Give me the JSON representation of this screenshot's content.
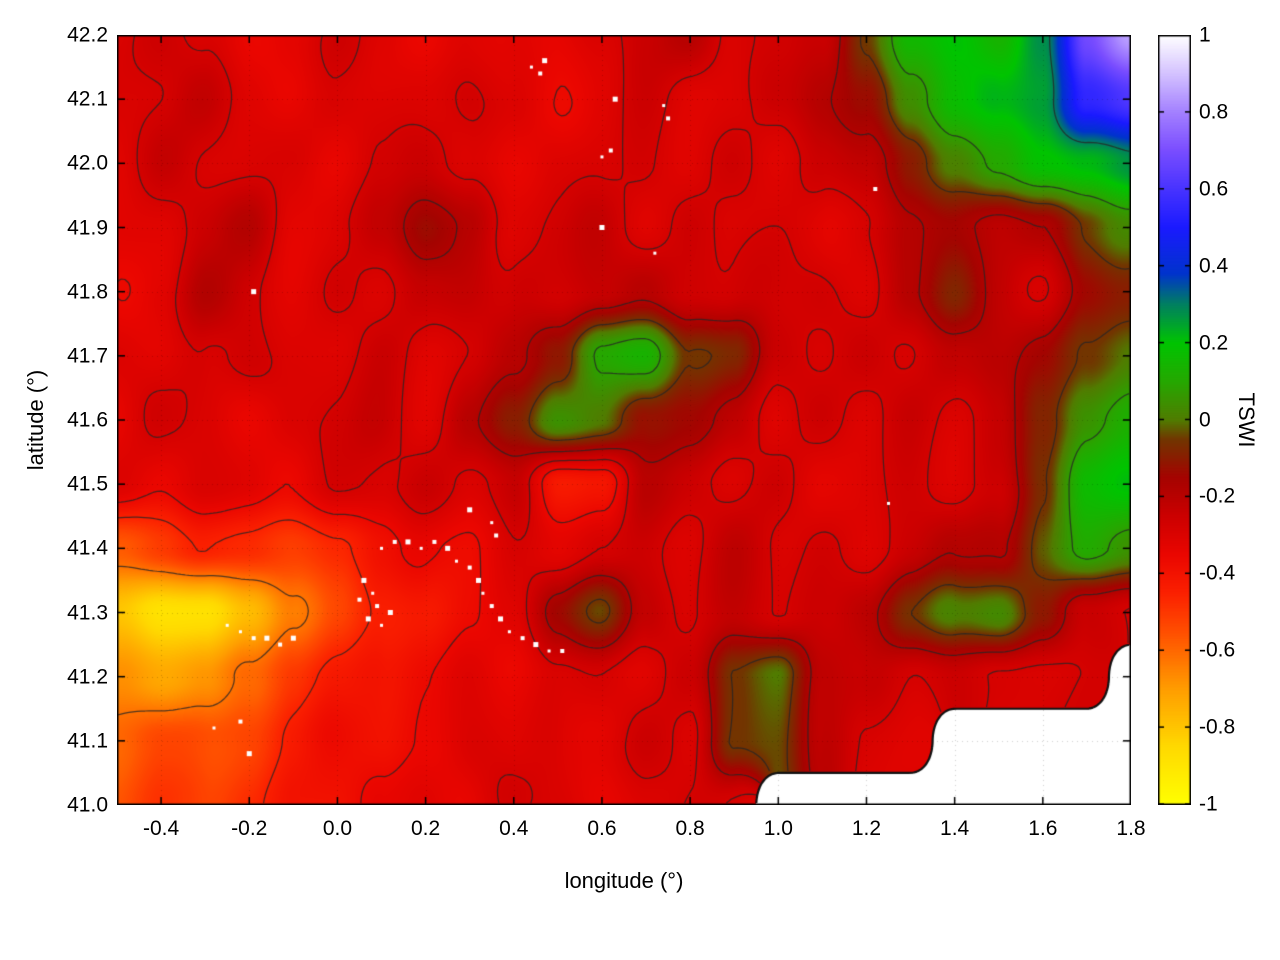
{
  "chart_data": {
    "type": "heatmap",
    "title": "",
    "xlabel": "longitude (°)",
    "ylabel": "latitude (°)",
    "colorbar_label": "TSWI",
    "xlim": [
      -0.5,
      1.8
    ],
    "ylim": [
      41.0,
      42.2
    ],
    "zlim": [
      -1,
      1
    ],
    "grid_on": true,
    "x_ticks": {
      "values": [
        -0.4,
        -0.2,
        0.0,
        0.2,
        0.4,
        0.6,
        0.8,
        1.0,
        1.2,
        1.4,
        1.6,
        1.8
      ],
      "labels": [
        "-0.4",
        "-0.2",
        "0.0",
        "0.2",
        "0.4",
        "0.6",
        "0.8",
        "1.0",
        "1.2",
        "1.4",
        "1.6",
        "1.8"
      ]
    },
    "y_ticks": {
      "values": [
        41.0,
        41.1,
        41.2,
        41.3,
        41.4,
        41.5,
        41.6,
        41.7,
        41.8,
        41.9,
        42.0,
        42.1,
        42.2
      ],
      "labels": [
        "41.0",
        "41.1",
        "41.2",
        "41.3",
        "41.4",
        "41.5",
        "41.6",
        "41.7",
        "41.8",
        "41.9",
        "42.0",
        "42.1",
        "42.2"
      ]
    },
    "colorbar_ticks": {
      "values": [
        1,
        0.8,
        0.6,
        0.4,
        0.2,
        0,
        -0.2,
        -0.4,
        -0.6,
        -0.8,
        -1
      ],
      "labels": [
        "1",
        "0.8",
        "0.6",
        "0.4",
        "0.2",
        "0",
        "-0.2",
        "-0.4",
        "-0.6",
        "-0.8",
        "-1"
      ]
    },
    "palette": [
      [
        -1.0,
        "#ffff00"
      ],
      [
        -0.85,
        "#ffd900"
      ],
      [
        -0.7,
        "#ff9d00"
      ],
      [
        -0.55,
        "#ff4e00"
      ],
      [
        -0.45,
        "#fb2000"
      ],
      [
        -0.35,
        "#ea0600"
      ],
      [
        -0.25,
        "#cc0000"
      ],
      [
        -0.15,
        "#a50300"
      ],
      [
        -0.05,
        "#713600"
      ],
      [
        0.0,
        "#507c00"
      ],
      [
        0.1,
        "#25a800"
      ],
      [
        0.2,
        "#00c400"
      ],
      [
        0.3,
        "#008060"
      ],
      [
        0.38,
        "#0033cc"
      ],
      [
        0.5,
        "#1a1aff"
      ],
      [
        0.6,
        "#4733ff"
      ],
      [
        0.7,
        "#7a4dff"
      ],
      [
        0.8,
        "#a380ff"
      ],
      [
        0.9,
        "#d4c2ff"
      ],
      [
        1.0,
        "#ffffff"
      ]
    ],
    "contour_levels": [
      -0.62,
      -0.45,
      -0.36,
      -0.28,
      -0.18,
      -0.06,
      0.08,
      0.3
    ],
    "noise_amplitude": 0.05,
    "contour_color": "#262626",
    "coast_color": "#111111",
    "sea_color": "#ffffff",
    "grid": {
      "nx": 24,
      "ny": 13,
      "x_start": -0.5,
      "x_step": 0.1,
      "y_start": 42.2,
      "y_step": -0.1,
      "values": [
        [
          -0.3,
          -0.25,
          -0.3,
          -0.35,
          -0.3,
          -0.25,
          -0.3,
          -0.35,
          -0.3,
          -0.3,
          -0.35,
          -0.3,
          -0.25,
          -0.2,
          -0.3,
          -0.3,
          -0.25,
          -0.05,
          0.15,
          0.2,
          0.12,
          0.3,
          0.7,
          0.85
        ],
        [
          -0.3,
          -0.3,
          -0.25,
          -0.3,
          -0.35,
          -0.3,
          -0.3,
          -0.3,
          -0.25,
          -0.3,
          -0.35,
          -0.3,
          -0.25,
          -0.3,
          -0.3,
          -0.25,
          -0.2,
          -0.15,
          0.05,
          0.15,
          0.2,
          0.25,
          0.55,
          0.62
        ],
        [
          -0.3,
          -0.25,
          -0.3,
          -0.3,
          -0.3,
          -0.35,
          -0.3,
          -0.25,
          -0.3,
          -0.35,
          -0.3,
          -0.3,
          -0.25,
          -0.3,
          -0.25,
          -0.3,
          -0.25,
          -0.2,
          -0.1,
          0.0,
          0.1,
          0.18,
          0.22,
          0.25
        ],
        [
          -0.3,
          -0.3,
          -0.25,
          -0.2,
          -0.3,
          -0.3,
          -0.25,
          -0.15,
          -0.2,
          -0.3,
          -0.3,
          -0.25,
          -0.3,
          -0.25,
          -0.3,
          -0.3,
          -0.3,
          -0.25,
          -0.2,
          -0.15,
          -0.2,
          -0.15,
          -0.05,
          0.0
        ],
        [
          -0.35,
          -0.3,
          -0.2,
          -0.25,
          -0.3,
          -0.25,
          -0.3,
          -0.25,
          -0.2,
          -0.25,
          -0.3,
          -0.25,
          -0.2,
          -0.25,
          -0.3,
          -0.3,
          -0.25,
          -0.3,
          -0.2,
          -0.1,
          -0.2,
          -0.25,
          -0.15,
          -0.1
        ],
        [
          -0.3,
          -0.35,
          -0.3,
          -0.25,
          -0.3,
          -0.3,
          -0.25,
          -0.3,
          -0.25,
          -0.2,
          -0.1,
          0.1,
          0.15,
          -0.05,
          -0.1,
          -0.25,
          -0.3,
          -0.25,
          -0.3,
          -0.25,
          -0.2,
          -0.15,
          -0.05,
          0.0
        ],
        [
          -0.35,
          -0.3,
          -0.3,
          -0.35,
          -0.3,
          -0.3,
          -0.25,
          -0.3,
          -0.2,
          -0.1,
          0.05,
          0.02,
          -0.1,
          -0.15,
          -0.2,
          -0.3,
          -0.25,
          -0.3,
          -0.25,
          -0.3,
          -0.25,
          -0.1,
          0.05,
          0.1
        ],
        [
          -0.3,
          -0.35,
          -0.3,
          -0.3,
          -0.35,
          -0.3,
          -0.3,
          -0.25,
          -0.3,
          -0.25,
          -0.45,
          -0.4,
          -0.2,
          -0.25,
          -0.3,
          -0.25,
          -0.3,
          -0.3,
          -0.25,
          -0.3,
          -0.25,
          -0.05,
          0.15,
          0.2
        ],
        [
          -0.55,
          -0.5,
          -0.45,
          -0.45,
          -0.5,
          -0.45,
          -0.4,
          -0.35,
          -0.35,
          -0.3,
          -0.35,
          -0.3,
          -0.25,
          -0.3,
          -0.25,
          -0.3,
          -0.25,
          -0.3,
          -0.25,
          -0.2,
          -0.15,
          0.0,
          0.1,
          0.05
        ],
        [
          -0.8,
          -0.9,
          -0.88,
          -0.78,
          -0.62,
          -0.52,
          -0.45,
          -0.4,
          -0.35,
          -0.3,
          -0.15,
          -0.05,
          -0.2,
          -0.3,
          -0.25,
          -0.3,
          -0.25,
          -0.2,
          -0.1,
          0.0,
          0.05,
          -0.1,
          -0.25,
          -0.3
        ],
        [
          -0.7,
          -0.75,
          -0.7,
          -0.6,
          -0.5,
          -0.45,
          -0.4,
          -0.35,
          -0.3,
          -0.35,
          -0.3,
          -0.25,
          -0.3,
          -0.25,
          -0.05,
          0.0,
          -0.2,
          -0.25,
          -0.3,
          -0.25,
          -0.3,
          -0.3,
          -0.3,
          null
        ],
        [
          -0.6,
          -0.55,
          -0.55,
          -0.5,
          -0.45,
          -0.4,
          -0.4,
          -0.35,
          -0.3,
          -0.35,
          -0.3,
          -0.3,
          -0.25,
          -0.3,
          -0.05,
          0.0,
          -0.2,
          -0.3,
          -0.3,
          null,
          null,
          null,
          null,
          null
        ],
        [
          -0.55,
          -0.5,
          -0.5,
          -0.45,
          -0.4,
          -0.4,
          -0.35,
          -0.3,
          -0.35,
          -0.3,
          -0.3,
          -0.35,
          -0.3,
          -0.3,
          -0.3,
          null,
          null,
          null,
          null,
          null,
          null,
          null,
          null,
          null
        ]
      ]
    },
    "missing_data_specks": [
      [
        0.1,
        41.4
      ],
      [
        0.13,
        41.41
      ],
      [
        0.16,
        41.41
      ],
      [
        0.19,
        41.4
      ],
      [
        0.22,
        41.41
      ],
      [
        0.25,
        41.4
      ],
      [
        0.27,
        41.38
      ],
      [
        0.3,
        41.37
      ],
      [
        0.32,
        41.35
      ],
      [
        0.33,
        41.33
      ],
      [
        0.35,
        41.31
      ],
      [
        0.37,
        41.29
      ],
      [
        0.39,
        41.27
      ],
      [
        0.42,
        41.26
      ],
      [
        0.45,
        41.25
      ],
      [
        0.48,
        41.24
      ],
      [
        0.51,
        41.24
      ],
      [
        0.06,
        41.35
      ],
      [
        0.08,
        41.33
      ],
      [
        0.09,
        41.31
      ],
      [
        0.07,
        41.29
      ],
      [
        0.1,
        41.28
      ],
      [
        0.05,
        41.32
      ],
      [
        0.12,
        41.3
      ],
      [
        -0.22,
        41.27
      ],
      [
        -0.19,
        41.26
      ],
      [
        -0.16,
        41.26
      ],
      [
        -0.25,
        41.28
      ],
      [
        -0.13,
        41.25
      ],
      [
        -0.1,
        41.26
      ],
      [
        -0.28,
        41.12
      ],
      [
        -0.22,
        41.13
      ],
      [
        -0.2,
        41.08
      ],
      [
        0.35,
        41.44
      ],
      [
        0.36,
        41.42
      ],
      [
        0.3,
        41.46
      ],
      [
        0.44,
        42.15
      ],
      [
        0.46,
        42.14
      ],
      [
        0.47,
        42.16
      ],
      [
        0.6,
        42.01
      ],
      [
        0.62,
        42.02
      ],
      [
        0.63,
        42.1
      ],
      [
        0.74,
        42.09
      ],
      [
        0.75,
        42.07
      ],
      [
        0.6,
        41.9
      ],
      [
        0.72,
        41.86
      ],
      [
        1.22,
        41.96
      ],
      [
        -0.19,
        41.8
      ],
      [
        1.25,
        41.47
      ]
    ]
  }
}
